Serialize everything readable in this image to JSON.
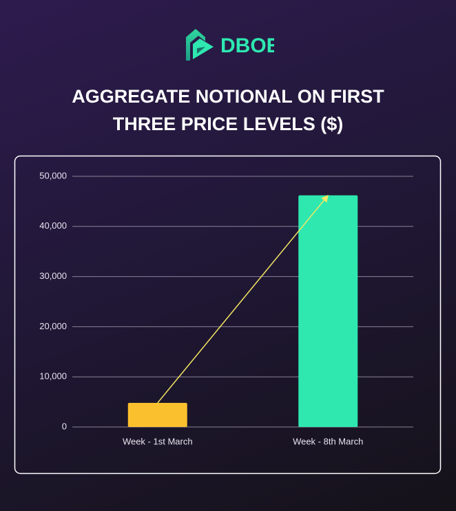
{
  "logo": "DBOE",
  "chart_data": {
    "type": "bar",
    "title": "AGGREGATE NOTIONAL ON FIRST THREE PRICE LEVELS ($)",
    "categories": [
      "Week - 1st March",
      "Week - 8th March"
    ],
    "values": [
      4800,
      46200
    ],
    "colors": [
      "#fbc02d",
      "#2ee8b0"
    ],
    "ylim": [
      0,
      50000
    ],
    "yticks": [
      0,
      {
        "value": 10000,
        "label": "10,000"
      },
      {
        "value": 20000,
        "label": "20,000"
      },
      {
        "value": 30000,
        "label": "30,000"
      },
      {
        "value": 40000,
        "label": "40,000"
      },
      {
        "value": 50000,
        "label": "50,000"
      }
    ],
    "grid": true
  }
}
